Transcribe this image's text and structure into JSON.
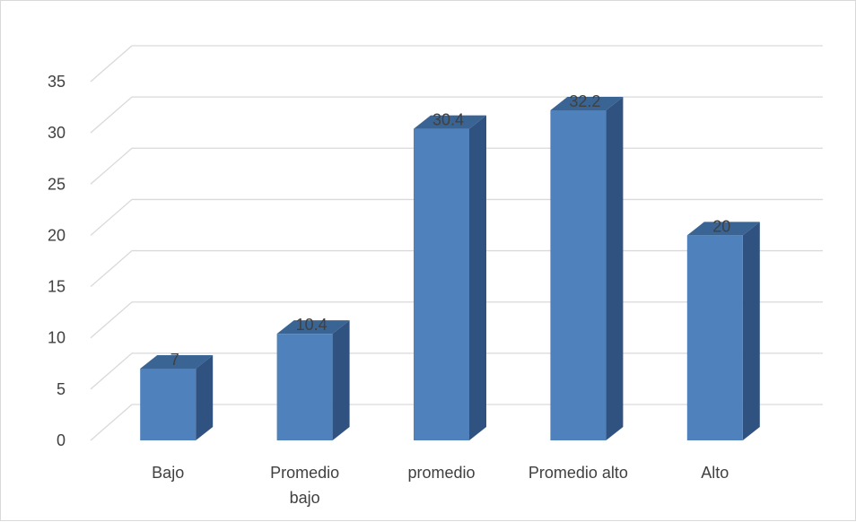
{
  "chart_data": {
    "type": "bar",
    "categories": [
      "Bajo",
      "Promedio bajo",
      "promedio",
      "Promedio alto",
      "Alto"
    ],
    "category_lines": [
      [
        "Bajo"
      ],
      [
        "Promedio",
        "bajo"
      ],
      [
        "promedio"
      ],
      [
        "Promedio alto"
      ],
      [
        "Alto"
      ]
    ],
    "values": [
      7,
      10.4,
      30.4,
      32.2,
      20
    ],
    "data_labels": [
      "7",
      "10.4",
      "30.4",
      "32.2",
      "20"
    ],
    "y_ticks": [
      "0",
      "5",
      "10",
      "15",
      "20",
      "25",
      "30",
      "35"
    ],
    "ylim": [
      0,
      35
    ],
    "title": "",
    "xlabel": "",
    "ylabel": "",
    "grid": true,
    "legend": "none",
    "style": "3d-column",
    "colors": {
      "front": "#4f81bd",
      "side": "#2f5280",
      "top": "#3a6494",
      "grid": "#d9d9d9",
      "text": "#404040"
    }
  }
}
